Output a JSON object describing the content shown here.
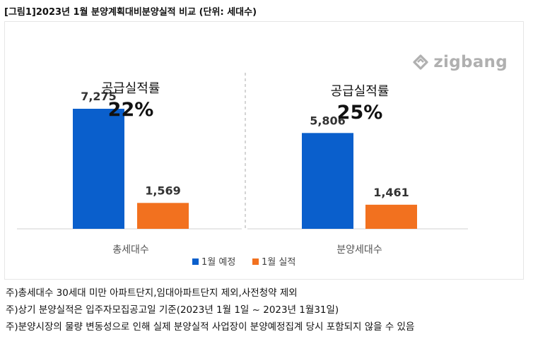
{
  "title": "[그림1]2023년 1월 분양계획대비분양실적 비교 (단위: 세대수)",
  "logo_text": "zigbang",
  "chart_data": {
    "type": "bar",
    "categories": [
      "총세대수",
      "분양세대수"
    ],
    "series": [
      {
        "name": "1월 예정",
        "color": "#0a5fcc",
        "values": [
          7275,
          5806
        ],
        "labels": [
          "7,275",
          "5,806"
        ]
      },
      {
        "name": "1월 실적",
        "color": "#f2711f",
        "values": [
          1569,
          1461
        ],
        "labels": [
          "1,569",
          "1,461"
        ]
      }
    ],
    "annotations": [
      {
        "heading": "공급실적률",
        "value": "22%"
      },
      {
        "heading": "공급실적률",
        "value": "25%"
      }
    ],
    "ylim": [
      0,
      9000
    ],
    "grid": false,
    "legend": "bottom-center"
  },
  "notes": [
    "주)총세대수 30세대 미만 아파트단지,임대아파트단지 제외,사전청약 제외",
    "주)상기 분양실적은 입주자모집공고일 기준(2023년 1월 1일 ~ 2023년 1월31일)",
    "주)분양시장의 물량 변동성으로 인해 실제 분양실적 사업장이 분양예정집계 당시 포함되지 않을 수 있음"
  ]
}
